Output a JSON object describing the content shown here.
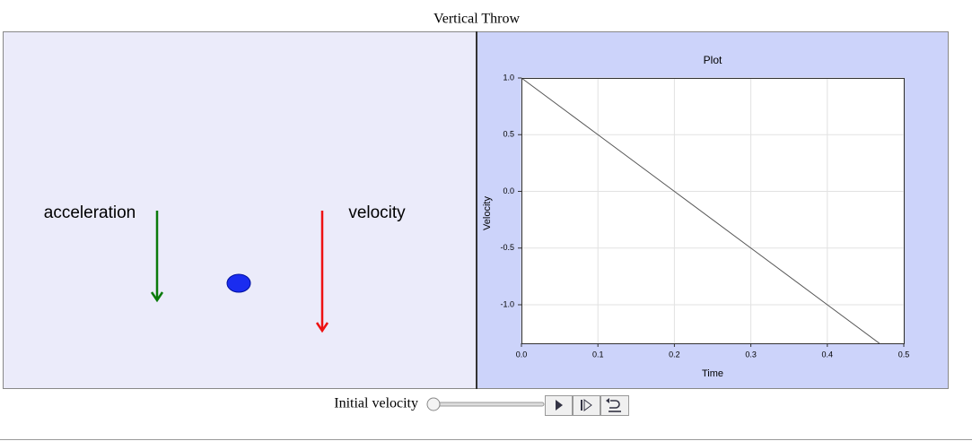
{
  "title": "Vertical Throw",
  "scene": {
    "acceleration_label": "acceleration",
    "velocity_label": "velocity"
  },
  "chart_data": {
    "type": "line",
    "title": "Plot",
    "x_label": "Time",
    "y_label": "Velocity",
    "x": [
      0,
      0.1,
      0.2,
      0.3,
      0.4,
      0.468
    ],
    "values": [
      1,
      0.5,
      0,
      -0.5,
      -1,
      -1.34
    ],
    "color": "#555555",
    "xlim": [
      0,
      0.5
    ],
    "ylim": [
      -1.34,
      1
    ],
    "xticks": [
      {
        "value": 0,
        "label": "0.0"
      },
      0.1,
      0.2,
      0.3,
      0.4,
      0.5
    ],
    "yticks": [
      {
        "value": 1,
        "label": "1.0"
      },
      0.5,
      {
        "value": 0,
        "label": "0.0"
      },
      -0.5,
      {
        "value": -1,
        "label": "-1.0"
      }
    ],
    "grid": true
  },
  "controls": {
    "slider_label": "Initial velocity"
  }
}
